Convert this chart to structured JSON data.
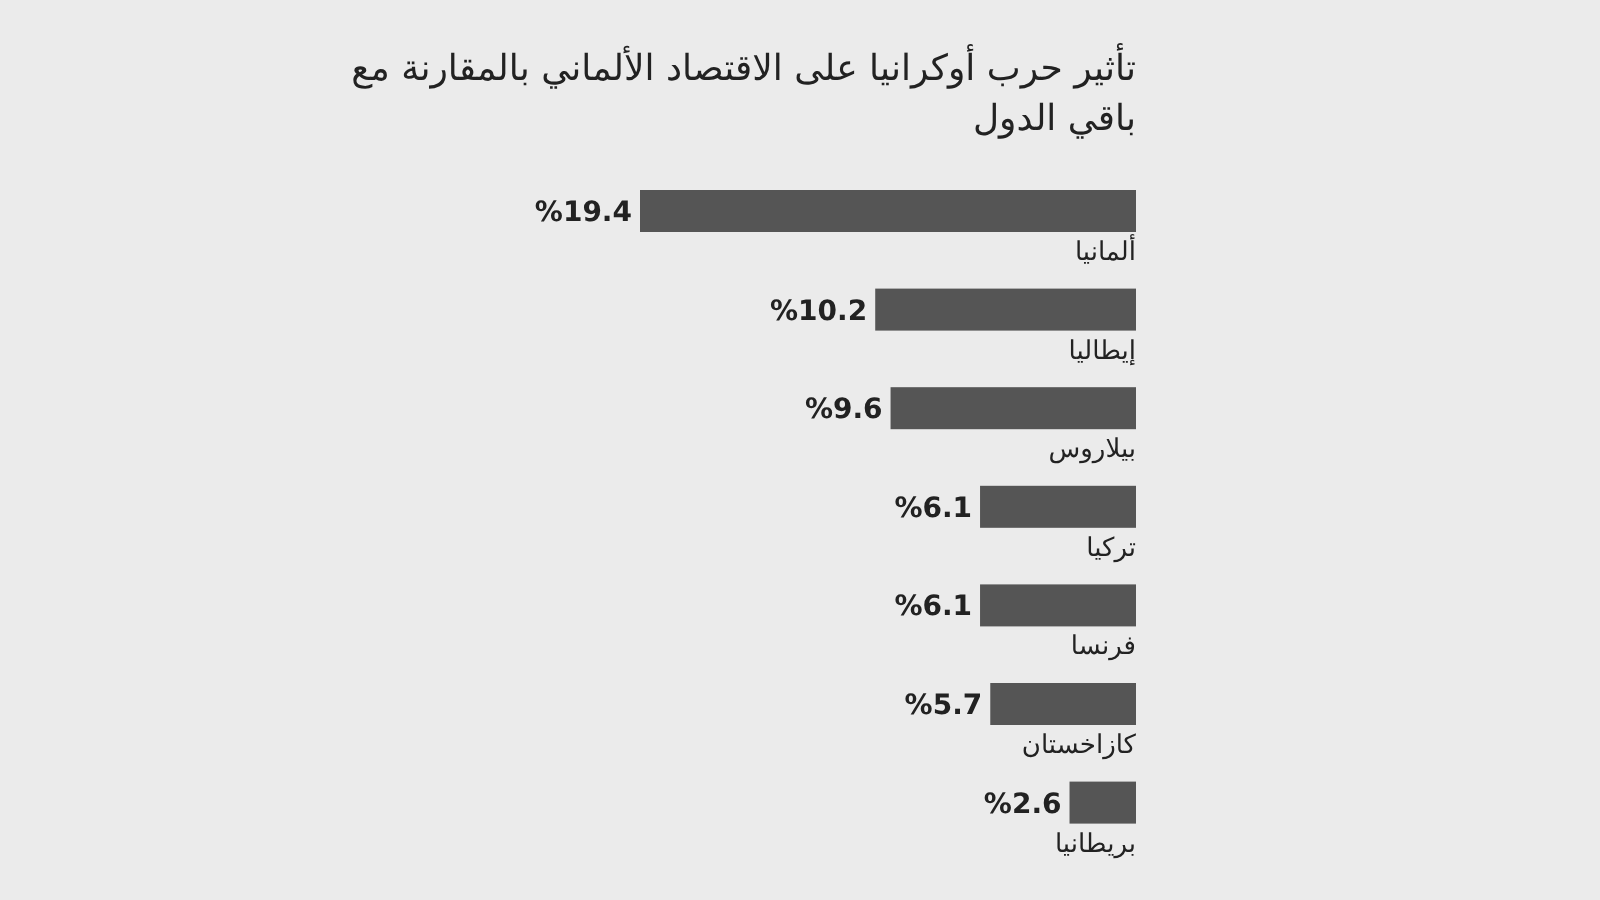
{
  "chart_data": {
    "type": "bar",
    "orientation": "horizontal",
    "title": "تأثير حرب أوكرانيا على الاقتصاد الألماني بالمقارنة مع باقي الدول",
    "categories": [
      "ألمانيا",
      "إيطاليا",
      "بيلاروس",
      "تركيا",
      "فرنسا",
      "كازاخستان",
      "بريطانيا"
    ],
    "values": [
      19.4,
      10.2,
      9.6,
      6.1,
      6.1,
      5.7,
      2.6
    ],
    "value_labels": [
      "%19.4",
      "%10.2",
      "%9.6",
      "%6.1",
      "%6.1",
      "%5.7",
      "%2.6"
    ],
    "color": "#555555"
  }
}
